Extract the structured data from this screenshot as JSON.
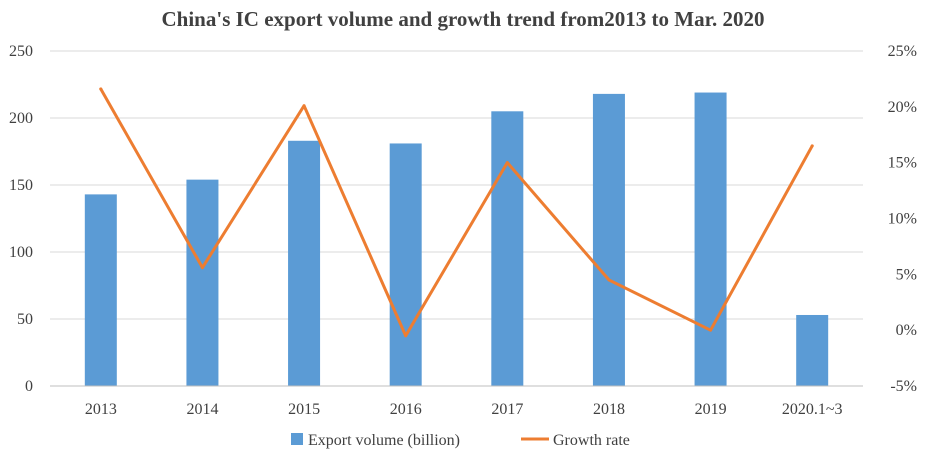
{
  "chart_data": {
    "type": "bar",
    "title": "China's IC export volume and growth trend from2013 to Mar. 2020",
    "categories": [
      "2013",
      "2014",
      "2015",
      "2016",
      "2017",
      "2018",
      "2019",
      "2020.1~3"
    ],
    "series": [
      {
        "name": "Export volume (billion)",
        "type": "bar",
        "axis": "left",
        "color": "#5B9BD5",
        "values": [
          143,
          154,
          183,
          181,
          205,
          218,
          219,
          53
        ]
      },
      {
        "name": "Growth rate",
        "type": "line",
        "axis": "right",
        "color": "#ED7D31",
        "values": [
          21.6,
          5.6,
          20.1,
          -0.5,
          15.0,
          4.5,
          0.0,
          16.5
        ]
      }
    ],
    "y_left": {
      "ylim": [
        0,
        250
      ],
      "ticks": [
        0,
        50,
        100,
        150,
        200,
        250
      ],
      "tick_labels": [
        "0",
        "50",
        "100",
        "150",
        "200",
        "250"
      ]
    },
    "y_right": {
      "ylim": [
        -5,
        25
      ],
      "ticks": [
        -5,
        0,
        5,
        10,
        15,
        20,
        25
      ],
      "tick_labels": [
        "-5%",
        "0%",
        "5%",
        "10%",
        "15%",
        "20%",
        "25%"
      ]
    },
    "grid": true,
    "legend_position": "bottom"
  }
}
